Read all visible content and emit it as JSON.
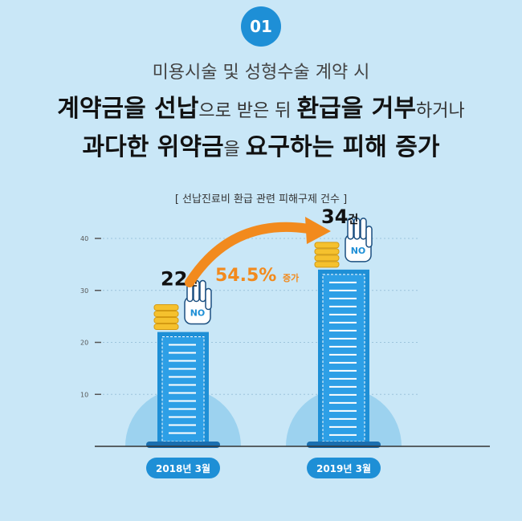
{
  "badge": "01",
  "headline": {
    "line1": "미용시술 및 성형수술 계약 시",
    "line2": {
      "a": "계약금을 선납",
      "b": "으로 받은 뒤 ",
      "c": "환급을 거부",
      "d": "하거나"
    },
    "line3": {
      "a": "과다한 위약금",
      "b": "을 ",
      "c": "요구하는 피해 증가"
    }
  },
  "chart_data": {
    "type": "bar",
    "title": "[ 선납진료비 환급 관련 피해구제 건수 ]",
    "categories": [
      "2018년 3월",
      "2019년 3월"
    ],
    "values": [
      22,
      34
    ],
    "value_labels": [
      "22",
      "34"
    ],
    "unit": "건",
    "yticks": [
      10,
      20,
      30,
      40
    ],
    "ylim": [
      0,
      40
    ],
    "annotation": {
      "value": "54.5%",
      "suffix": "증가"
    },
    "grid": true,
    "icon_label": "NO",
    "colors": {
      "bar": "#1e8fd6",
      "arrow": "#f28a1d",
      "circle": "#8ccbec",
      "coin": "#f5c12e"
    }
  }
}
